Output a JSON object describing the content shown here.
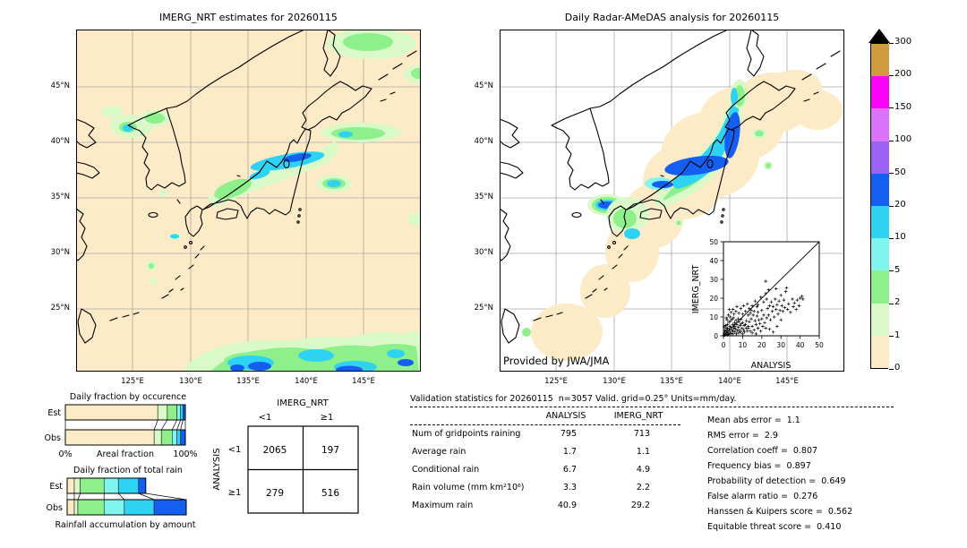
{
  "left_map": {
    "title": "IMERG_NRT estimates for 20260115",
    "x_ticks": [
      "125°E",
      "130°E",
      "135°E",
      "140°E",
      "145°E"
    ],
    "y_ticks": [
      "45°N",
      "40°N",
      "35°N",
      "30°N",
      "25°N"
    ]
  },
  "right_map": {
    "title": "Daily Radar-AMeDAS analysis for 20260115",
    "credit": "Provided by JWA/JMA",
    "x_ticks": [
      "125°E",
      "130°E",
      "135°E",
      "140°E",
      "145°E"
    ],
    "y_ticks": [
      "45°N",
      "40°N",
      "35°N",
      "30°N",
      "25°N"
    ]
  },
  "colorbar": {
    "units": "mm/day",
    "levels": [
      "0",
      "1",
      "2",
      "5",
      "10",
      "20",
      "50",
      "100",
      "150",
      "200",
      "300"
    ],
    "colors": [
      "#fdeac6",
      "#d9f9c9",
      "#8df08b",
      "#80f5ee",
      "#2ed3f3",
      "#155ef2",
      "#9b63f4",
      "#dc73fa",
      "#fa05fa",
      "#d09c3e"
    ],
    "overflow_color": "#000000"
  },
  "chart_data": [
    {
      "type": "bar",
      "title": "Daily fraction by occurence",
      "orientation": "horizontal",
      "stacked": true,
      "categories": [
        "Est",
        "Obs"
      ],
      "bins_mm_day": [
        "0-1",
        "1-2",
        "2-5",
        "5-10",
        "10-20",
        "20-50"
      ],
      "series": {
        "Est": [
          77,
          8,
          8,
          3,
          2,
          2
        ],
        "Obs": [
          74,
          6,
          9,
          4,
          3,
          4
        ]
      },
      "xlabel": "Areal fraction",
      "x_min_label": "0%",
      "x_max_label": "100%",
      "xlim": [
        0,
        100
      ]
    },
    {
      "type": "bar",
      "title": "Daily fraction of total rain",
      "caption": "Rainfall accumulation by amount",
      "orientation": "horizontal",
      "stacked": true,
      "categories": [
        "Est",
        "Obs"
      ],
      "bins_mm_day": [
        "0-1",
        "1-2",
        "2-5",
        "5-10",
        "10-20",
        "20-50"
      ],
      "series": {
        "Est": [
          6,
          5,
          20,
          12,
          17,
          6
        ],
        "Obs": [
          6,
          3,
          22,
          17,
          25,
          27
        ]
      },
      "xlim": [
        0,
        100
      ]
    },
    {
      "type": "table",
      "name": "contingency",
      "col_group": "IMERG_NRT",
      "row_group": "ANALYSIS",
      "col_labels": [
        "<1",
        "≥1"
      ],
      "row_labels": [
        "<1",
        "≥1"
      ],
      "values": [
        [
          "2065",
          "197"
        ],
        [
          "279",
          "516"
        ]
      ]
    },
    {
      "type": "table",
      "name": "validation",
      "title": "Validation statistics for 20260115  n=3057 Valid. grid=0.25° Units=mm/day.",
      "columns": [
        "ANALYSIS",
        "IMERG_NRT"
      ],
      "rows": [
        [
          "Num of gridpoints raining",
          "795",
          "713"
        ],
        [
          "Average rain",
          "1.7",
          "1.1"
        ],
        [
          "Conditional rain",
          "6.7",
          "4.9"
        ],
        [
          "Rain volume (mm km²10⁶)",
          "3.3",
          "2.2"
        ],
        [
          "Maximum rain",
          "40.9",
          "29.2"
        ]
      ]
    },
    {
      "type": "stats",
      "items": [
        [
          "Mean abs error",
          "1.1"
        ],
        [
          "RMS error",
          "2.9"
        ],
        [
          "Correlation coeff",
          "0.807"
        ],
        [
          "Frequency bias",
          "0.897"
        ],
        [
          "Probability of detection",
          "0.649"
        ],
        [
          "False alarm ratio",
          "0.276"
        ],
        [
          "Hanssen & Kuipers score",
          "0.562"
        ],
        [
          "Equitable threat score",
          "0.410"
        ]
      ]
    },
    {
      "type": "scatter",
      "xlabel": "ANALYSIS",
      "ylabel": "IMERG_NRT",
      "xlim": [
        0,
        50
      ],
      "ylim": [
        0,
        50
      ],
      "ticks": [
        0,
        10,
        20,
        30,
        40,
        50
      ],
      "diagonal": true,
      "marker": "+",
      "points": [
        [
          0.3,
          0.4
        ],
        [
          0.5,
          1.2
        ],
        [
          0.8,
          0.3
        ],
        [
          1,
          2
        ],
        [
          1.2,
          0.8
        ],
        [
          1.5,
          3
        ],
        [
          1.8,
          1.5
        ],
        [
          2,
          0.5
        ],
        [
          2,
          4
        ],
        [
          2.3,
          2.5
        ],
        [
          2.6,
          1
        ],
        [
          3,
          3.5
        ],
        [
          3,
          0.8
        ],
        [
          3.3,
          5
        ],
        [
          3.6,
          2
        ],
        [
          4,
          1.2
        ],
        [
          4,
          4.5
        ],
        [
          4.4,
          3
        ],
        [
          4.8,
          6
        ],
        [
          5,
          1
        ],
        [
          5,
          2.5
        ],
        [
          5.4,
          4
        ],
        [
          5.8,
          7
        ],
        [
          6,
          2
        ],
        [
          6,
          5
        ],
        [
          6.4,
          3.5
        ],
        [
          6.8,
          1
        ],
        [
          7,
          6
        ],
        [
          7.3,
          2.8
        ],
        [
          7.7,
          4.5
        ],
        [
          8,
          1.5
        ],
        [
          8,
          7.5
        ],
        [
          8.4,
          3
        ],
        [
          8.8,
          5.5
        ],
        [
          9,
          2
        ],
        [
          9.3,
          6.5
        ],
        [
          9.7,
          4
        ],
        [
          10,
          1
        ],
        [
          10,
          7
        ],
        [
          10.5,
          3
        ],
        [
          0.6,
          2.8
        ],
        [
          1.4,
          4.2
        ],
        [
          2.1,
          6
        ],
        [
          2.9,
          7.2
        ],
        [
          3.7,
          8
        ],
        [
          4.5,
          8.8
        ],
        [
          5.2,
          9.5
        ],
        [
          1.1,
          5.5
        ],
        [
          1.9,
          8.5
        ],
        [
          0.4,
          4.8
        ],
        [
          6.6,
          8.2
        ],
        [
          7.8,
          9
        ],
        [
          9.1,
          8.8
        ],
        [
          10.8,
          5.5
        ],
        [
          11,
          2
        ],
        [
          11.4,
          6
        ],
        [
          11.8,
          4
        ],
        [
          12,
          8
        ],
        [
          12.5,
          2.5
        ],
        [
          12.9,
          5
        ],
        [
          1.5,
          9.5
        ],
        [
          2.5,
          11
        ],
        [
          3.5,
          10
        ],
        [
          4,
          12.5
        ],
        [
          5,
          14
        ],
        [
          5.5,
          11.5
        ],
        [
          6.5,
          13
        ],
        [
          7,
          15.5
        ],
        [
          8,
          12
        ],
        [
          9,
          14.5
        ],
        [
          10,
          11.5
        ],
        [
          10.5,
          16
        ],
        [
          11.5,
          13
        ],
        [
          3,
          14
        ],
        [
          12.5,
          17
        ],
        [
          13,
          11
        ],
        [
          13,
          4
        ],
        [
          13.5,
          7.5
        ],
        [
          14,
          2.5
        ],
        [
          14.5,
          9
        ],
        [
          15,
          5
        ],
        [
          15.5,
          11
        ],
        [
          16,
          3
        ],
        [
          16.5,
          8
        ],
        [
          17,
          6
        ],
        [
          17.5,
          10.5
        ],
        [
          18,
          4
        ],
        [
          18.5,
          8.5
        ],
        [
          19,
          6.5
        ],
        [
          19.5,
          2.5
        ],
        [
          20,
          9
        ],
        [
          20.5,
          5
        ],
        [
          21,
          11
        ],
        [
          21.5,
          7
        ],
        [
          22,
          4
        ],
        [
          22.5,
          9.5
        ],
        [
          14,
          12
        ],
        [
          16,
          13
        ],
        [
          18,
          12.5
        ],
        [
          20,
          13.5
        ],
        [
          15,
          1.5
        ],
        [
          17,
          1
        ],
        [
          13.5,
          14.5
        ],
        [
          15,
          16
        ],
        [
          16.5,
          18.5
        ],
        [
          18,
          16.5
        ],
        [
          19.5,
          20.5
        ],
        [
          21,
          18
        ],
        [
          22,
          22.5
        ],
        [
          14.5,
          13.5
        ],
        [
          17.5,
          15.5
        ],
        [
          22.5,
          19.5
        ],
        [
          23,
          14.5
        ],
        [
          23.5,
          11
        ],
        [
          24,
          16
        ],
        [
          24.5,
          8.5
        ],
        [
          25,
          18
        ],
        [
          25.5,
          13
        ],
        [
          26,
          15.5
        ],
        [
          26.5,
          10
        ],
        [
          27,
          19.5
        ],
        [
          27.5,
          14
        ],
        [
          28,
          16.5
        ],
        [
          28.5,
          11.5
        ],
        [
          29,
          18.5
        ],
        [
          29.5,
          13.5
        ],
        [
          30,
          21.5
        ],
        [
          30.5,
          16
        ],
        [
          31,
          13
        ],
        [
          31.5,
          19
        ],
        [
          32,
          15
        ],
        [
          33,
          25.5
        ],
        [
          33.5,
          14
        ],
        [
          34,
          17
        ],
        [
          35,
          12.5
        ],
        [
          36,
          19.5
        ],
        [
          36.5,
          15.5
        ],
        [
          37,
          17.5
        ],
        [
          38,
          14
        ],
        [
          38.5,
          19
        ],
        [
          39.5,
          16
        ],
        [
          40,
          20
        ],
        [
          41,
          21
        ],
        [
          41.5,
          19.5
        ],
        [
          22,
          29
        ],
        [
          23.5,
          24.5
        ],
        [
          26,
          2
        ],
        [
          24,
          3.5
        ],
        [
          28,
          5
        ],
        [
          30,
          8.5
        ],
        [
          27.5,
          25
        ],
        [
          32.5,
          23.5
        ]
      ]
    }
  ]
}
